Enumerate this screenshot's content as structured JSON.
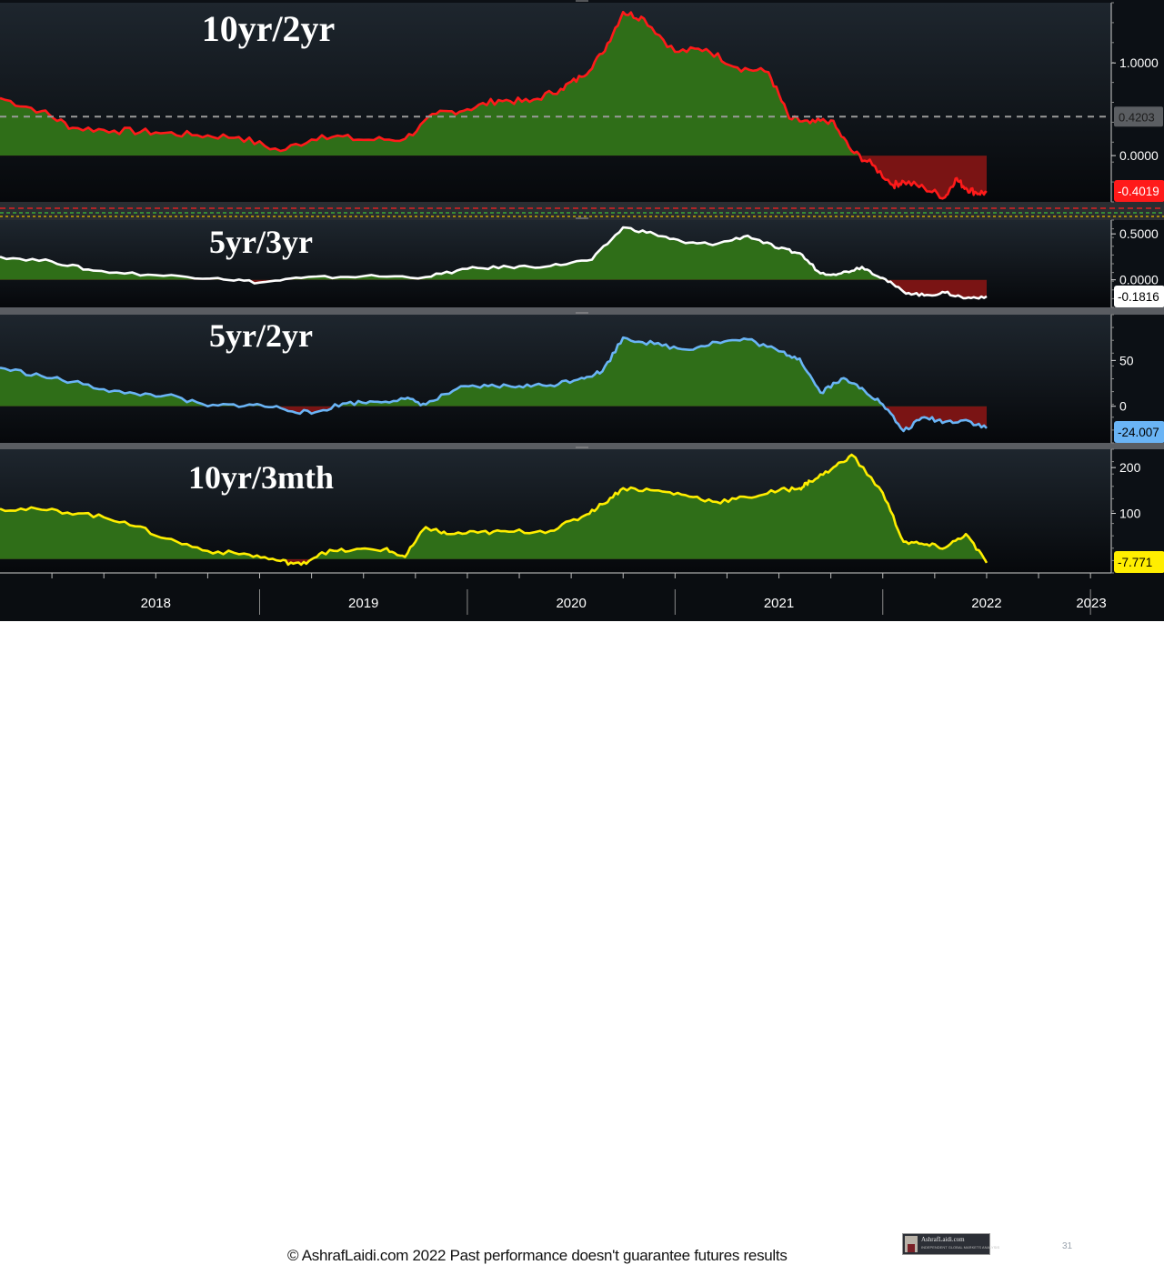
{
  "footer": {
    "copyright": "© AshrafLaidi.com 2022 Past performance doesn't guarantee futures results",
    "page_number": "31",
    "logo_text": "AshrafLaidi.com",
    "logo_subtext": "INDEPENDENT GLOBAL MARKETS ANALYSIS"
  },
  "colors": {
    "background": "#0c1015",
    "positive_fill": "#2f6e18",
    "negative_fill": "#7a1414",
    "axis_text": "#ffffff"
  },
  "chart_data": [
    {
      "type": "area",
      "title": "10yr/2yr",
      "line_color": "#ff1a1a",
      "value_badge": "-0.4019",
      "reference_badge": "0.4203",
      "reference_value": 0.4203,
      "y_ticks": [
        "1.0000",
        "0.0000"
      ],
      "ylim": [
        -0.5,
        1.65
      ],
      "x": [
        2017.75,
        2017.95,
        2018.1,
        2018.3,
        2018.5,
        2018.7,
        2018.9,
        2019.1,
        2019.3,
        2019.5,
        2019.7,
        2019.85,
        2020.0,
        2020.15,
        2020.3,
        2020.45,
        2020.55,
        2020.65,
        2020.75,
        2020.85,
        2021.0,
        2021.15,
        2021.3,
        2021.45,
        2021.55,
        2021.65,
        2021.75,
        2021.85,
        2021.95,
        2022.05,
        2022.1,
        2022.2,
        2022.3,
        2022.35,
        2022.4,
        2022.45,
        2022.5
      ],
      "values": [
        0.62,
        0.48,
        0.3,
        0.27,
        0.25,
        0.22,
        0.2,
        0.05,
        0.22,
        0.17,
        0.18,
        0.45,
        0.5,
        0.6,
        0.58,
        0.72,
        0.85,
        1.1,
        1.55,
        1.48,
        1.12,
        1.15,
        0.95,
        0.9,
        0.4,
        0.35,
        0.38,
        0.05,
        -0.1,
        -0.32,
        -0.28,
        -0.35,
        -0.45,
        -0.25,
        -0.35,
        -0.4,
        -0.4
      ]
    },
    {
      "type": "area",
      "title": "5yr/3yr",
      "line_color": "#ffffff",
      "value_badge": "-0.1816",
      "y_ticks": [
        "0.5000",
        "0.0000"
      ],
      "ylim": [
        -0.3,
        0.65
      ],
      "x": [
        2017.75,
        2018.0,
        2018.2,
        2018.5,
        2018.8,
        2019.0,
        2019.2,
        2019.5,
        2019.8,
        2020.0,
        2020.2,
        2020.4,
        2020.6,
        2020.75,
        2020.9,
        2021.05,
        2021.2,
        2021.35,
        2021.5,
        2021.6,
        2021.7,
        2021.8,
        2021.9,
        2022.0,
        2022.1,
        2022.2,
        2022.3,
        2022.4,
        2022.5
      ],
      "values": [
        0.25,
        0.2,
        0.1,
        0.05,
        0.02,
        -0.03,
        0.02,
        0.04,
        0.03,
        0.12,
        0.14,
        0.15,
        0.22,
        0.57,
        0.5,
        0.4,
        0.39,
        0.48,
        0.34,
        0.29,
        0.07,
        0.07,
        0.14,
        0.02,
        -0.13,
        -0.17,
        -0.14,
        -0.2,
        -0.18
      ]
    },
    {
      "type": "area",
      "title": "5yr/2yr",
      "line_color": "#6ab4f5",
      "value_badge": "-24.007",
      "y_ticks": [
        "50",
        "0"
      ],
      "ylim": [
        -40,
        100
      ],
      "x": [
        2017.75,
        2017.95,
        2018.15,
        2018.35,
        2018.55,
        2018.75,
        2018.95,
        2019.1,
        2019.25,
        2019.4,
        2019.55,
        2019.7,
        2019.8,
        2019.95,
        2020.1,
        2020.25,
        2020.4,
        2020.55,
        2020.65,
        2020.75,
        2020.9,
        2021.05,
        2021.2,
        2021.35,
        2021.5,
        2021.6,
        2021.7,
        2021.8,
        2021.9,
        2022.0,
        2022.1,
        2022.2,
        2022.3,
        2022.4,
        2022.5
      ],
      "values": [
        42,
        33,
        24,
        14,
        12,
        0,
        2,
        -2,
        -8,
        3,
        5,
        8,
        2,
        19,
        22,
        22,
        23,
        31,
        38,
        75,
        68,
        62,
        70,
        73,
        60,
        52,
        15,
        30,
        20,
        2,
        -27,
        -12,
        -17,
        -15,
        -24
      ]
    },
    {
      "type": "area",
      "title": "10yr/3mth",
      "line_color": "#ffee00",
      "value_badge": "-7.771",
      "y_ticks": [
        "200",
        "100"
      ],
      "ylim": [
        -30,
        240
      ],
      "x": [
        2017.75,
        2017.95,
        2018.15,
        2018.35,
        2018.55,
        2018.75,
        2018.95,
        2019.1,
        2019.2,
        2019.3,
        2019.45,
        2019.6,
        2019.7,
        2019.8,
        2019.9,
        2020.05,
        2020.2,
        2020.4,
        2020.55,
        2020.65,
        2020.75,
        2020.9,
        2021.05,
        2021.2,
        2021.35,
        2021.5,
        2021.6,
        2021.65,
        2021.75,
        2021.85,
        2022.0,
        2022.1,
        2022.2,
        2022.3,
        2022.4,
        2022.5
      ],
      "values": [
        110,
        108,
        100,
        82,
        45,
        18,
        10,
        -4,
        -12,
        15,
        20,
        22,
        5,
        70,
        55,
        58,
        60,
        62,
        92,
        120,
        155,
        150,
        140,
        125,
        135,
        150,
        155,
        170,
        195,
        228,
        145,
        38,
        32,
        25,
        55,
        -8
      ]
    }
  ],
  "x_axis": {
    "ticks": [
      "2018",
      "2019",
      "2020",
      "2021",
      "2022",
      "2023"
    ]
  }
}
